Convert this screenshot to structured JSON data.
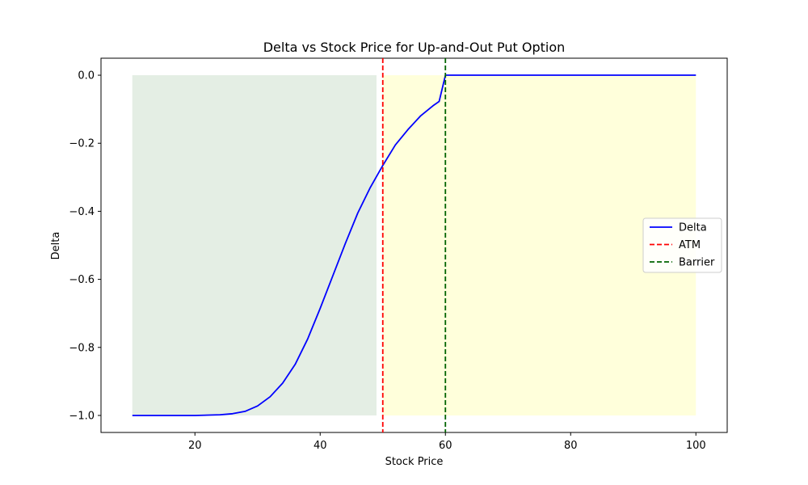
{
  "chart_data": {
    "type": "line",
    "title": "Delta vs Stock Price for Up-and-Out Put Option",
    "xlabel": "Stock Price",
    "ylabel": "Delta",
    "xlim": [
      5,
      105
    ],
    "ylim": [
      -1.05,
      0.05
    ],
    "xticks": [
      20,
      40,
      60,
      80,
      100
    ],
    "xtick_labels": [
      "20",
      "40",
      "60",
      "80",
      "100"
    ],
    "yticks": [
      0.0,
      -0.2,
      -0.4,
      -0.6,
      -0.8,
      -1.0
    ],
    "ytick_labels": [
      "0.0",
      "−0.2",
      "−0.4",
      "−0.6",
      "−0.8",
      "−1.0"
    ],
    "grid": false,
    "legend_position": "center-right",
    "shaded_regions": [
      {
        "x": [
          10,
          49
        ],
        "y": [
          -1.0,
          0.0
        ],
        "color": "#2e7d32",
        "opacity": 0.13
      },
      {
        "x": [
          50,
          100
        ],
        "y": [
          -1.0,
          0.0
        ],
        "color": "#ffffb0",
        "opacity": 0.45
      }
    ],
    "series": [
      {
        "name": "Delta",
        "color": "#0000ff",
        "style": "solid",
        "x": [
          10,
          20,
          24,
          26,
          28,
          30,
          32,
          34,
          36,
          38,
          40,
          42,
          44,
          46,
          48,
          50,
          52,
          54,
          56,
          58,
          59,
          60,
          65,
          70,
          80,
          90,
          100
        ],
        "y": [
          -1.0,
          -1.0,
          -0.998,
          -0.995,
          -0.988,
          -0.972,
          -0.945,
          -0.905,
          -0.85,
          -0.775,
          -0.685,
          -0.59,
          -0.495,
          -0.405,
          -0.33,
          -0.265,
          -0.205,
          -0.16,
          -0.12,
          -0.09,
          -0.077,
          0.0,
          0.0,
          0.0,
          0.0,
          0.0,
          0.0
        ]
      },
      {
        "name": "ATM",
        "color": "#ff0000",
        "style": "dashed",
        "vline_x": 50
      },
      {
        "name": "Barrier",
        "color": "#006400",
        "style": "dashed",
        "vline_x": 60
      }
    ]
  }
}
